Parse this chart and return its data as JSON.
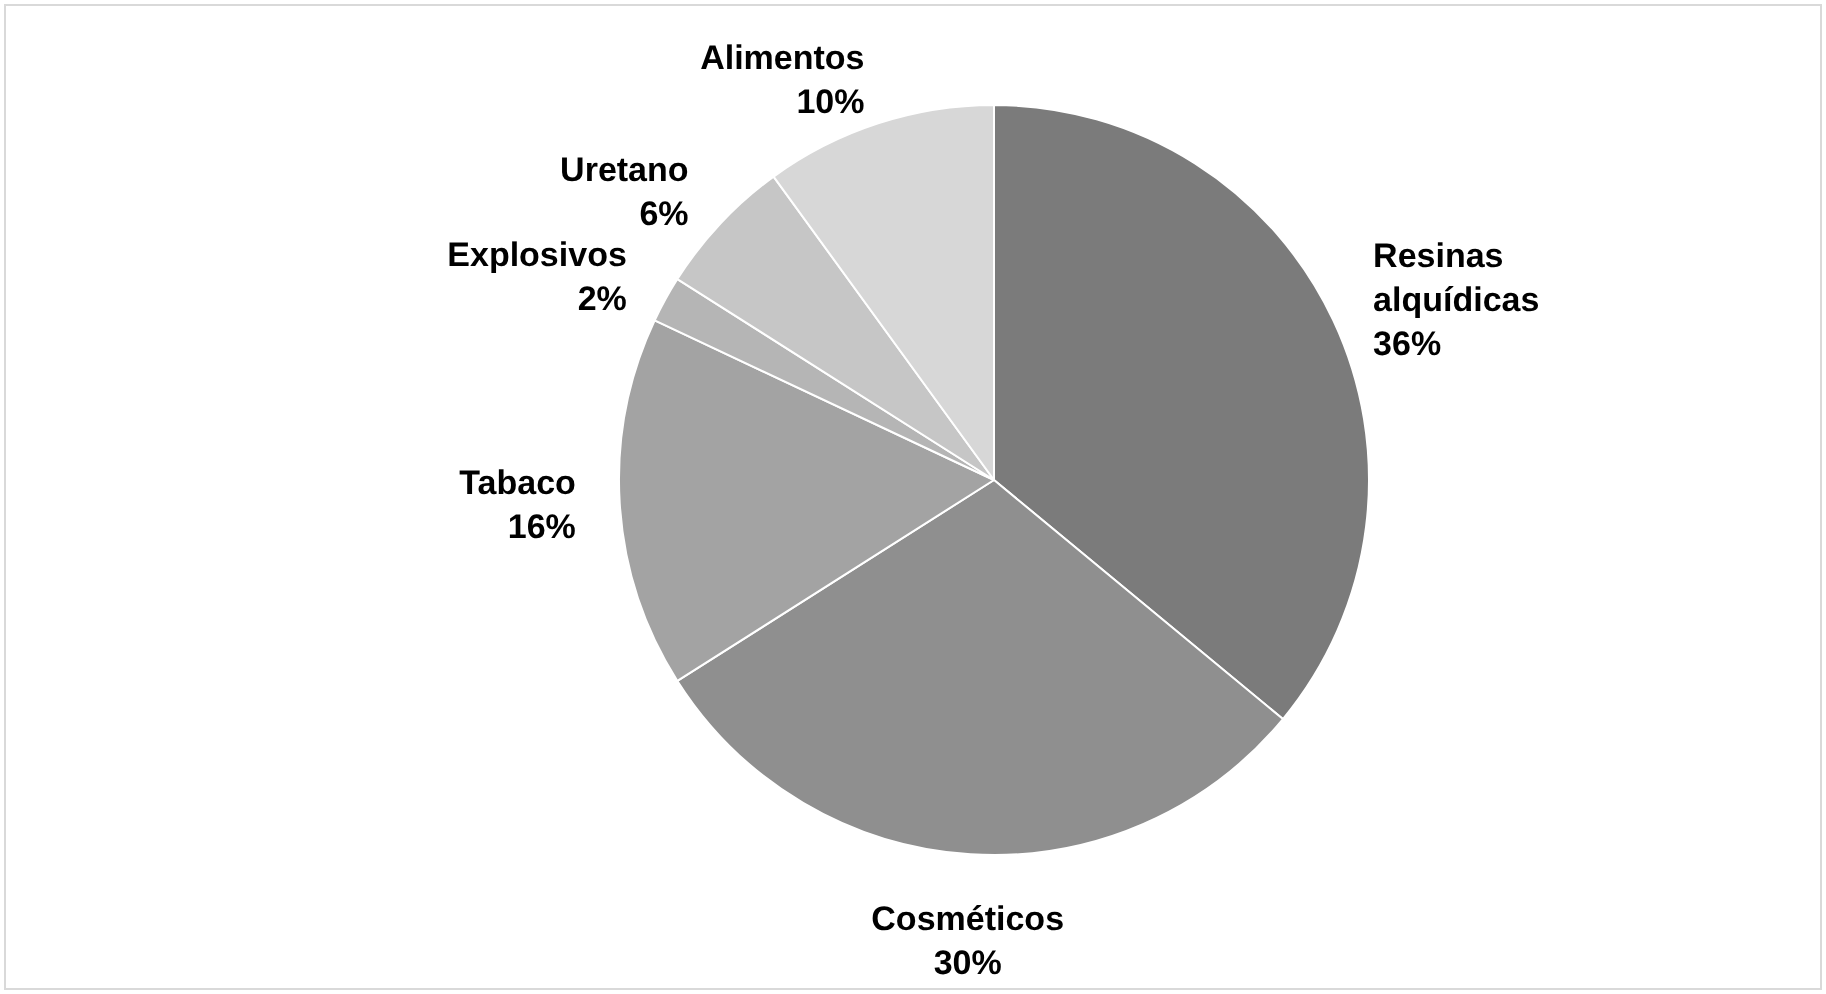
{
  "chart_data": {
    "type": "pie",
    "categories": [
      "Resinas alquídicas",
      "Cosméticos",
      "Tabaco",
      "Explosivos",
      "Uretano",
      "Alimentos"
    ],
    "values": [
      36,
      30,
      16,
      2,
      6,
      10
    ],
    "colors": [
      "#7b7b7b",
      "#8f8f8f",
      "#a3a3a3",
      "#b5b5b5",
      "#c6c6c6",
      "#d7d7d7"
    ],
    "value_labels": [
      "36%",
      "30%",
      "16%",
      "2%",
      "6%",
      "10%"
    ],
    "legend": false
  }
}
